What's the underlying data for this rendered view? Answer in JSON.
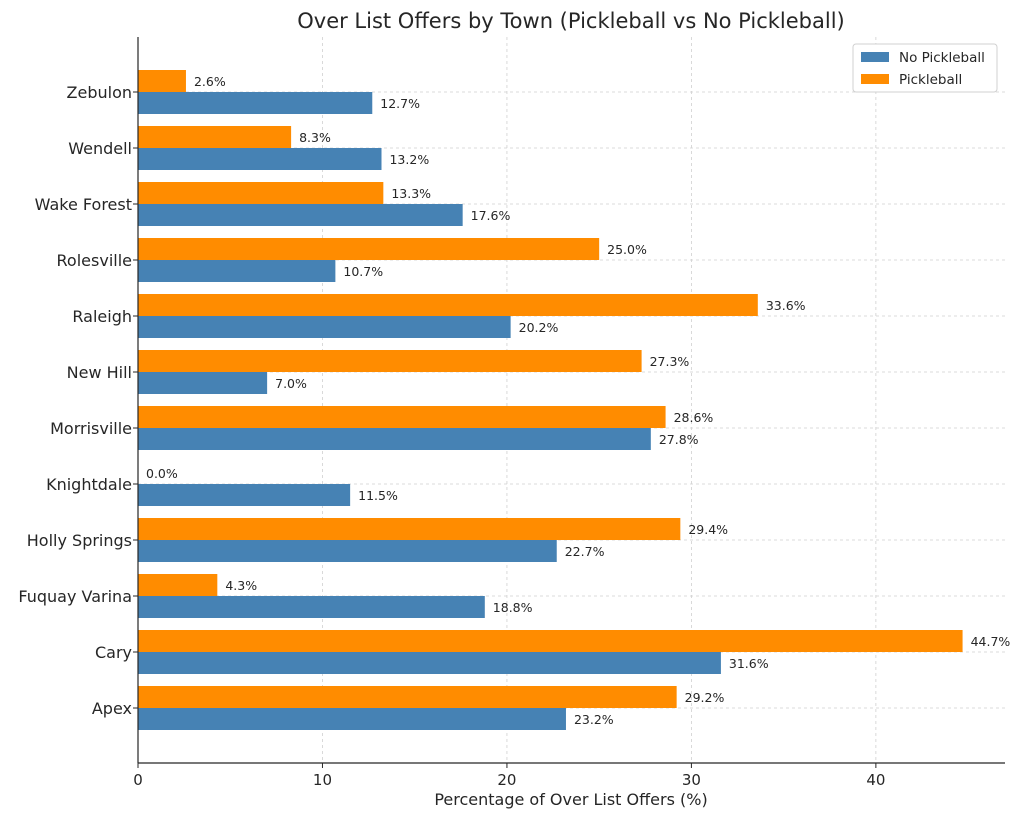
{
  "chart_data": {
    "type": "bar",
    "orientation": "horizontal",
    "title": "Over List Offers by Town (Pickleball vs No Pickleball)",
    "xlabel": "Percentage of Over List Offers (%)",
    "ylabel": "",
    "xlim": [
      0,
      47
    ],
    "xticks": [
      0,
      10,
      20,
      30,
      40
    ],
    "grid": true,
    "legend_position": "top-right",
    "categories": [
      "Apex",
      "Cary",
      "Fuquay Varina",
      "Holly Springs",
      "Knightdale",
      "Morrisville",
      "New Hill",
      "Raleigh",
      "Rolesville",
      "Wake Forest",
      "Wendell",
      "Zebulon"
    ],
    "series": [
      {
        "name": "No Pickleball",
        "color": "#4682b4",
        "values": [
          23.2,
          31.6,
          18.8,
          22.7,
          11.5,
          27.8,
          7.0,
          20.2,
          10.7,
          17.6,
          13.2,
          12.7
        ]
      },
      {
        "name": "Pickleball",
        "color": "#ff8c00",
        "values": [
          29.2,
          44.7,
          4.3,
          29.4,
          0.0,
          28.6,
          27.3,
          33.6,
          25.0,
          13.3,
          8.3,
          2.6
        ]
      }
    ]
  }
}
